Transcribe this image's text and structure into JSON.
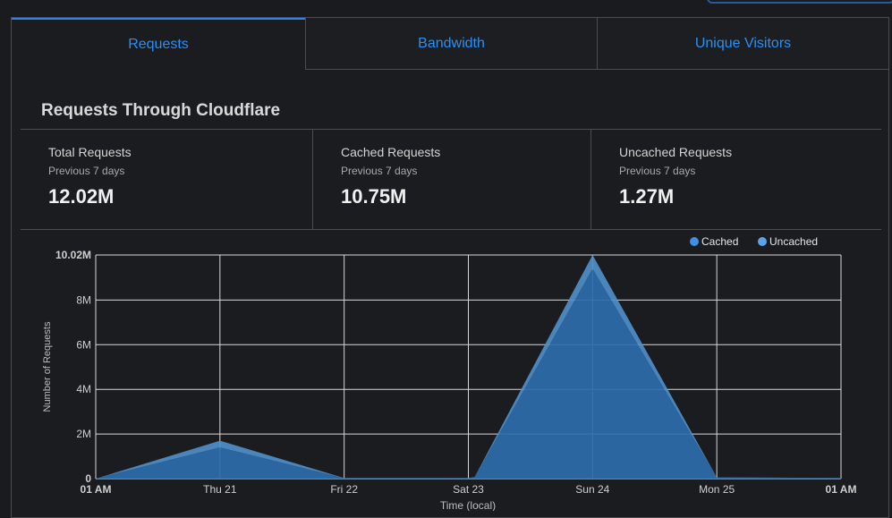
{
  "tabs": [
    {
      "label": "Requests",
      "active": true
    },
    {
      "label": "Bandwidth",
      "active": false
    },
    {
      "label": "Unique Visitors",
      "active": false
    }
  ],
  "section_title": "Requests Through Cloudflare",
  "stats": [
    {
      "label": "Total Requests",
      "period": "Previous 7 days",
      "value": "12.02M"
    },
    {
      "label": "Cached Requests",
      "period": "Previous 7 days",
      "value": "10.75M"
    },
    {
      "label": "Uncached Requests",
      "period": "Previous 7 days",
      "value": "1.27M"
    }
  ],
  "chart_data": {
    "type": "area",
    "categories": [
      "01 AM",
      "Thu 21",
      "Fri 22",
      "Sat 23",
      "Sun 24",
      "Mon 25",
      "01 AM"
    ],
    "x": [
      0,
      1,
      2,
      3,
      3.05,
      4,
      5,
      6
    ],
    "series": [
      {
        "name": "Cached",
        "color": "#2c6cad",
        "values": [
          0,
          1.4,
          0.02,
          0.02,
          0.05,
          9.4,
          0.05,
          0.02
        ]
      },
      {
        "name": "Uncached",
        "color": "#4e8fc9",
        "values": [
          0,
          0.3,
          0.01,
          0.01,
          0.02,
          0.62,
          0.01,
          0.01
        ]
      }
    ],
    "yticks": [
      0,
      2,
      4,
      6,
      8,
      10.02
    ],
    "ytick_labels": [
      "0",
      "2M",
      "4M",
      "6M",
      "8M",
      "10.02M"
    ],
    "ylim": [
      0,
      10.02
    ],
    "ylabel": "Number of Requests",
    "xlabel": "Time (local)",
    "legend": "top-right",
    "grid": true
  }
}
